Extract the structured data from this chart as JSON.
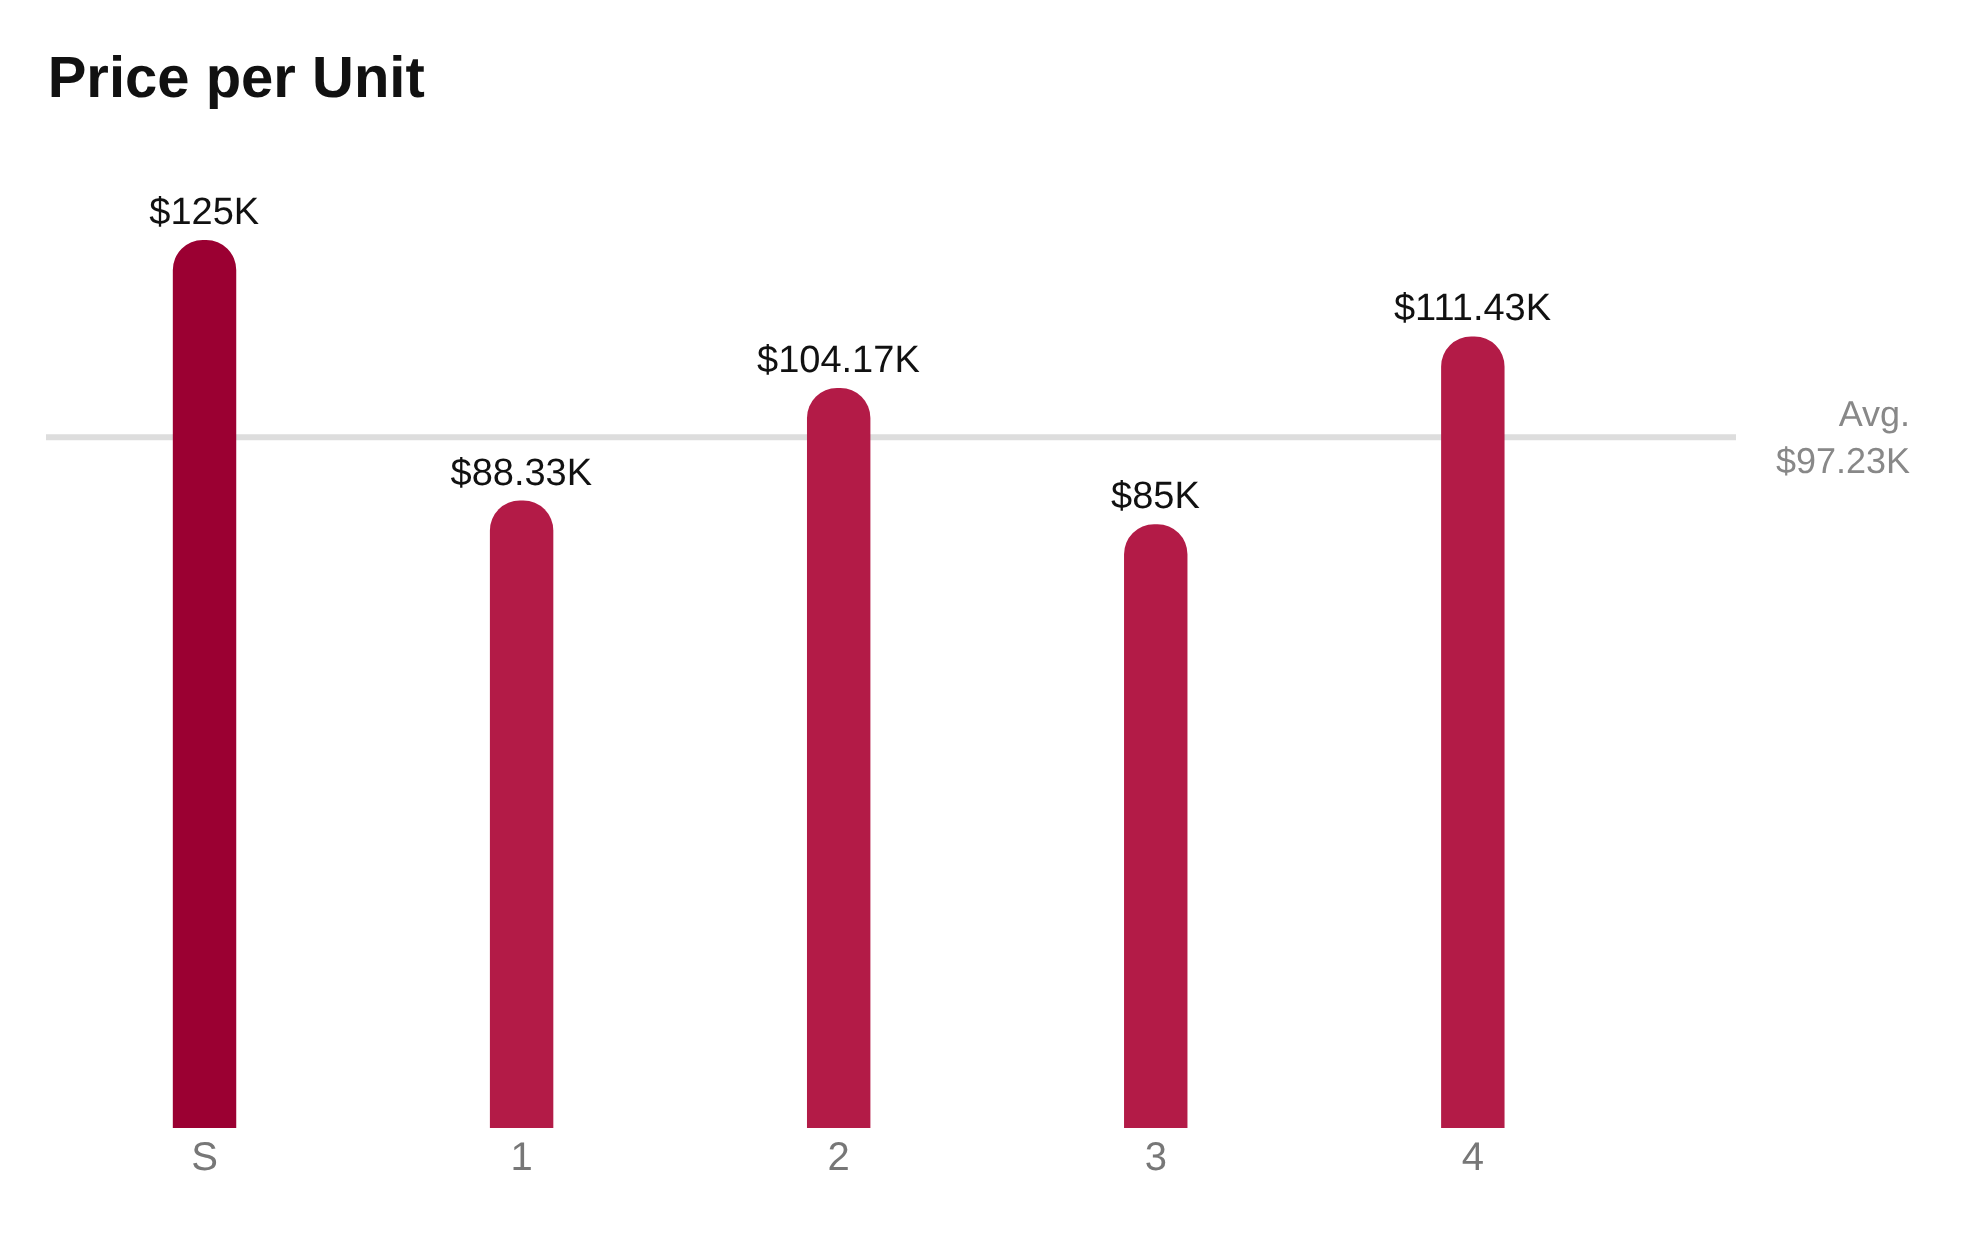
{
  "chart_data": {
    "type": "bar",
    "title": "Price per Unit",
    "categories": [
      "S",
      "1",
      "2",
      "3",
      "4"
    ],
    "values": [
      125,
      88.33,
      104.17,
      85,
      111.43
    ],
    "value_labels": [
      "$125K",
      "$88.33K",
      "$104.17K",
      "$85K",
      "$111.43K"
    ],
    "colors": [
      "#9b0032",
      "#b31b47",
      "#b31b47",
      "#b31b47",
      "#b31b47"
    ],
    "ref_lines": [
      {
        "axis": "y",
        "value": 97.23,
        "label": "Avg.\n$97.23K",
        "color": "#dddddd"
      }
    ],
    "grid": false,
    "legend": false
  }
}
